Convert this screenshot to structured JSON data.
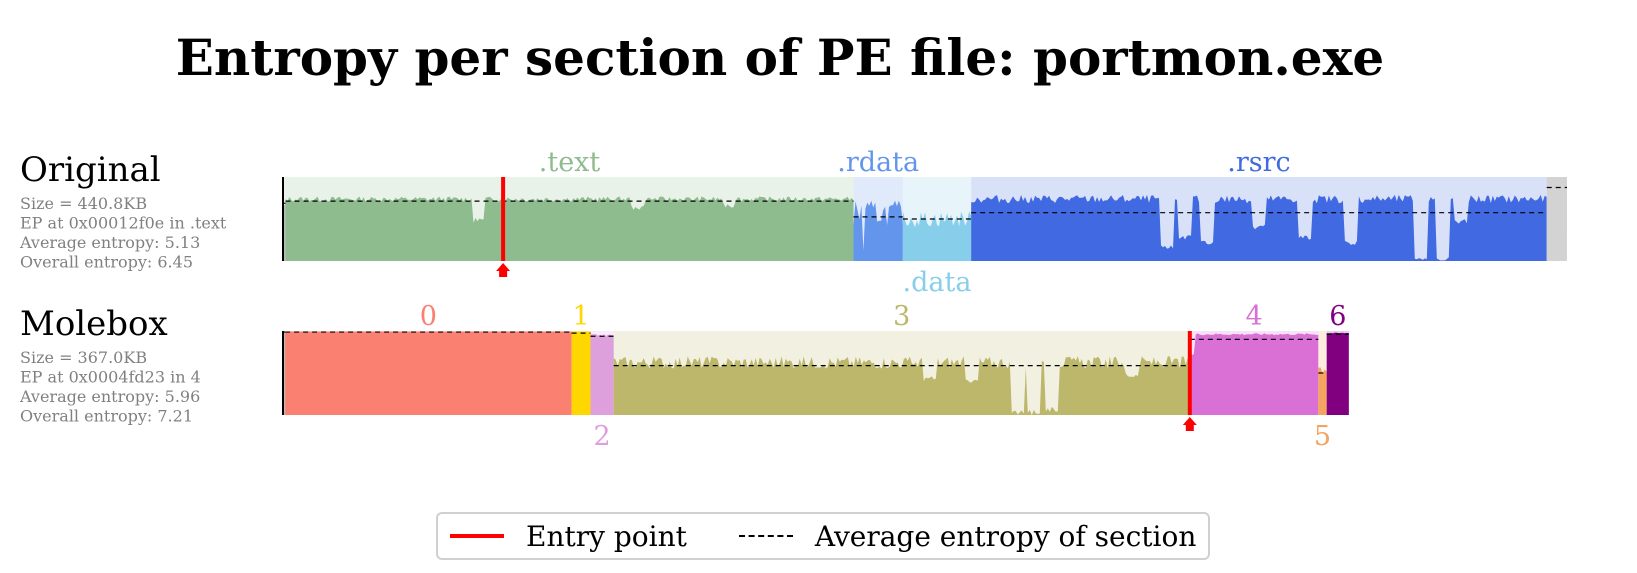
{
  "title": "Entropy per section of PE file: portmon.exe",
  "legend": {
    "entry_point": "Entry point",
    "avg_entropy": "Average entropy of section"
  },
  "chart_data": {
    "type": "area",
    "y_range": [
      0,
      8
    ],
    "files": [
      {
        "name": "Original",
        "info": [
          "Size = 440.8KB",
          "EP at 0x00012f0e in .text",
          "Average entropy: 5.13",
          "Overall entropy: 6.45"
        ],
        "size_kb": 440.8,
        "ep_fraction": 0.174,
        "sections": [
          {
            "label": "",
            "start": 0.0,
            "end": 0.002,
            "color": "#bbbbbb",
            "avg": 5.5,
            "level": 5.2,
            "var": 0.4,
            "dips": []
          },
          {
            "label": ".text",
            "label_pos": "top",
            "start": 0.002,
            "end": 0.451,
            "color": "#8fbc8f",
            "avg": 5.7,
            "level": 5.9,
            "var": 0.25,
            "dips": [
              [
                0.34,
                3.6
              ],
              [
                0.62,
                4.8
              ],
              [
                0.78,
                5.0
              ]
            ]
          },
          {
            "label": ".rdata",
            "label_pos": "top",
            "start": 0.451,
            "end": 0.49,
            "color": "#6495ed",
            "avg": 4.2,
            "level": 4.6,
            "var": 1.2,
            "dips": [
              [
                0.2,
                0.8
              ]
            ]
          },
          {
            "label": ".data",
            "label_pos": "bottom",
            "start": 0.49,
            "end": 0.544,
            "color": "#87ceeb",
            "avg": 4.0,
            "level": 4.0,
            "var": 0.8,
            "dips": []
          },
          {
            "label": ".rsrc",
            "label_pos": "top",
            "start": 0.544,
            "end": 0.999,
            "color": "#4169e1",
            "avg": 4.6,
            "level": 5.9,
            "var": 0.4,
            "dips": [
              [
                0.34,
                1.0
              ],
              [
                0.37,
                2.0
              ],
              [
                0.41,
                1.5
              ],
              [
                0.5,
                3.0
              ],
              [
                0.58,
                2.0
              ],
              [
                0.66,
                1.5
              ],
              [
                0.78,
                0.0
              ],
              [
                0.82,
                0.0
              ],
              [
                0.85,
                3.5
              ]
            ]
          },
          {
            "label": "",
            "start": 0.999,
            "end": 1.015,
            "color": "#d3d3d3",
            "avg": 7.0,
            "level": 8.0,
            "var": 0.0,
            "dips": []
          }
        ]
      },
      {
        "name": "Molebox",
        "info": [
          "Size = 367.0KB",
          "EP at 0x0004fd23 in 4",
          "Average entropy: 5.96",
          "Overall entropy: 7.21"
        ],
        "size_kb": 367.0,
        "ep_fraction": 0.861,
        "sections": [
          {
            "label": "",
            "start": 0.0,
            "end": 0.002,
            "color": "#bbbbbb",
            "avg": 7.9,
            "level": 7.9,
            "var": 0.0,
            "dips": []
          },
          {
            "label": "0",
            "label_pos": "top",
            "start": 0.002,
            "end": 0.274,
            "color": "#fa8072",
            "avg": 7.9,
            "level": 7.95,
            "var": 0.0,
            "dips": []
          },
          {
            "label": "1",
            "label_pos": "top",
            "start": 0.274,
            "end": 0.292,
            "color": "#ffd700",
            "avg": 7.8,
            "level": 7.95,
            "var": 0.0,
            "dips": []
          },
          {
            "label": "2",
            "label_pos": "bottom",
            "start": 0.292,
            "end": 0.314,
            "color": "#dda0dd",
            "avg": 7.5,
            "level": 7.6,
            "var": 0.1,
            "dips": []
          },
          {
            "label": "3",
            "label_pos": "top",
            "start": 0.314,
            "end": 0.861,
            "color": "#bdb76b",
            "avg": 4.7,
            "level": 5.0,
            "var": 0.6,
            "dips": [
              [
                0.55,
                3.2
              ],
              [
                0.62,
                3.0
              ],
              [
                0.7,
                0.0
              ],
              [
                0.73,
                0.0
              ],
              [
                0.76,
                0.3
              ],
              [
                0.9,
                3.5
              ]
            ]
          },
          {
            "label": "4",
            "label_pos": "top",
            "start": 0.861,
            "end": 0.983,
            "color": "#da70d6",
            "avg": 7.2,
            "level": 7.7,
            "var": 0.1,
            "dips": [
              [
                0.02,
                5.5
              ]
            ]
          },
          {
            "label": "5",
            "label_pos": "bottom",
            "start": 0.983,
            "end": 0.991,
            "color": "#f4a460",
            "avg": 4.0,
            "level": 4.5,
            "var": 0.6,
            "dips": []
          },
          {
            "label": "6",
            "label_pos": "top",
            "start": 0.991,
            "end": 1.012,
            "color": "#800080",
            "avg": 7.7,
            "level": 7.8,
            "var": 0.05,
            "dips": []
          }
        ]
      }
    ]
  }
}
